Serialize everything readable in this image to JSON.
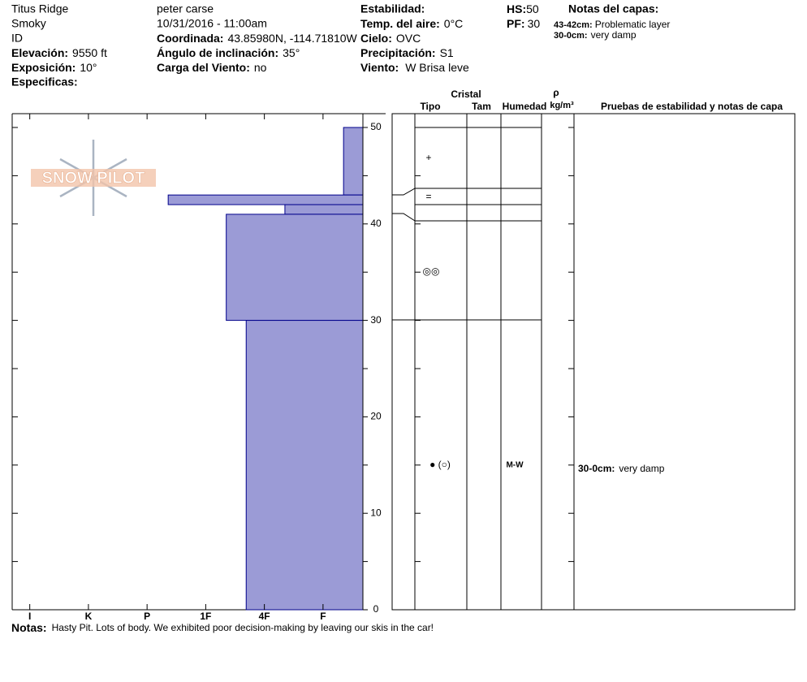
{
  "header": {
    "site": "Titus Ridge",
    "range": "Smoky",
    "state": "ID",
    "observer": "peter carse",
    "datetime": "10/31/2016 - 11:00am",
    "fields": [
      {
        "label": "Elevación:",
        "value": "9550 ft"
      },
      {
        "label": "Exposición:",
        "value": "10°"
      },
      {
        "label": "Especificas:"
      },
      {
        "label": "Coordinada:",
        "value": "43.85980N, -114.71810W"
      },
      {
        "label": "Ángulo de inclinación:",
        "value": "35°"
      },
      {
        "label": "Carga del Viento:",
        "value": "no"
      },
      {
        "label": "Estabilidad:"
      },
      {
        "label": "Temp. del aire:",
        "value": "0°C"
      },
      {
        "label": "Cielo:",
        "value": "OVC"
      },
      {
        "label": "Precipitación:",
        "value": "S1"
      },
      {
        "label": "Viento:",
        "value": "W Brisa leve"
      },
      {
        "label": "HS:",
        "value": "50"
      },
      {
        "label": "PF:",
        "value": "30"
      }
    ]
  },
  "layer_notes": {
    "title": "Notas del capas:",
    "items": [
      {
        "range": "43-42cm:",
        "text": "Problematic layer"
      },
      {
        "range": "30-0cm:",
        "text": "very damp"
      }
    ]
  },
  "logo": "SNOW PILOT",
  "profile": {
    "ylim": [
      0,
      50
    ],
    "yticks": [
      0,
      10,
      20,
      30,
      40,
      50
    ],
    "minor_yticks": [
      5,
      15,
      25,
      35,
      45
    ],
    "xlim": [
      6.3,
      0.32
    ],
    "xticks": [
      {
        "value": 6,
        "label": "I"
      },
      {
        "value": 5,
        "label": "K"
      },
      {
        "value": 4,
        "label": "P"
      },
      {
        "value": 3,
        "label": "1F"
      },
      {
        "value": 2,
        "label": "4F"
      },
      {
        "value": 1,
        "label": "F"
      }
    ],
    "color": "#9b9bd6",
    "edge_color": "#00008b",
    "layers": [
      {
        "top": 50,
        "bottom": 43,
        "hardness": 0.65
      },
      {
        "top": 43,
        "bottom": 42,
        "hardness": 3.64
      },
      {
        "top": 42,
        "bottom": 41,
        "hardness": 1.65
      },
      {
        "top": 41,
        "bottom": 30,
        "hardness": 2.65
      },
      {
        "top": 30,
        "bottom": 0,
        "hardness": 2.31
      }
    ]
  },
  "table": {
    "headers": {
      "crystal": "Cristal",
      "type": "Tipo",
      "size": "Tam",
      "moisture": "Humedad",
      "rho": "ρ",
      "density": "kg/m³",
      "tests": "Pruebas de estabilidad y notas de capa"
    },
    "grains": [
      "+",
      "=",
      "◎◎",
      "● (○)"
    ],
    "moisture": "M-W",
    "test_note": {
      "range": "30-0cm:",
      "text": "very damp"
    }
  },
  "notes": {
    "label": "Notas:",
    "text": "Hasty Pit. Lots of body. We exhibited poor decision-making by leaving our skis in the car!"
  }
}
